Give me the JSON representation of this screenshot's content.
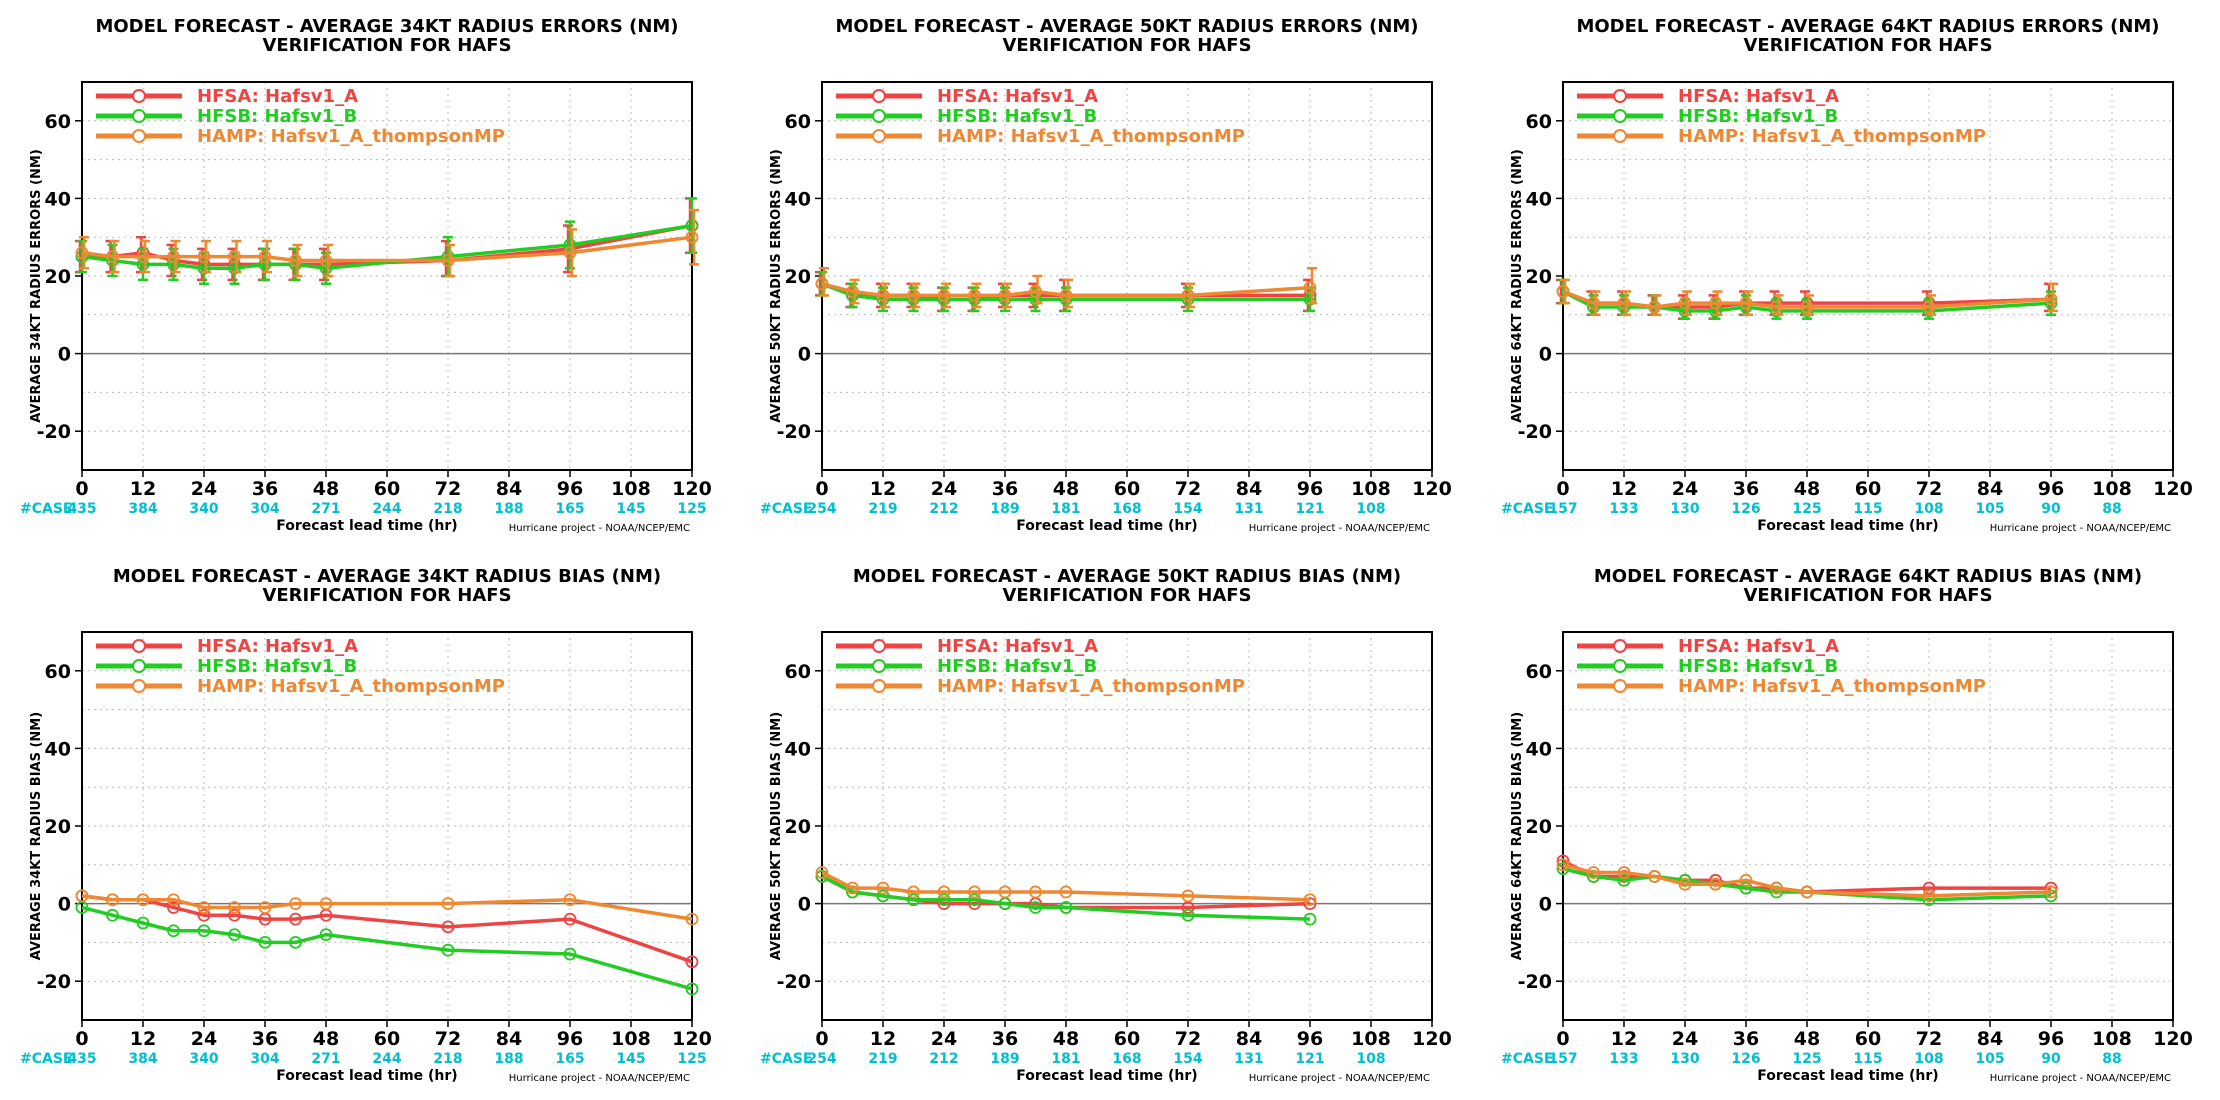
{
  "figure": {
    "colors": {
      "case_text": "#00c0d0",
      "grid": "#bbbbbb",
      "zero_line": "#777777"
    },
    "credit": "Hurricane project - NOAA/NCEP/EMC",
    "x_label": "Forecast lead time (hr)",
    "case_prefix": "#CASE"
  },
  "chart_data": [
    {
      "type": "line",
      "title": "MODEL FORECAST - AVERAGE 34KT RADIUS ERRORS (NM)",
      "subtitle": "VERIFICATION FOR HAFS",
      "ylabel": "AVERAGE 34KT RADIUS ERRORS (NM)",
      "xlabel": "Forecast lead time (hr)",
      "xlim": [
        0,
        120
      ],
      "ylim": [
        -30,
        70
      ],
      "xticks": [
        0,
        12,
        24,
        36,
        48,
        60,
        72,
        84,
        96,
        108,
        120
      ],
      "yticks": [
        -20,
        0,
        20,
        40,
        60
      ],
      "grid": true,
      "legend": "top-left",
      "x": [
        0,
        6,
        12,
        18,
        24,
        30,
        36,
        42,
        48,
        72,
        96,
        120
      ],
      "case_counts": {
        "x": [
          0,
          12,
          24,
          36,
          48,
          60,
          72,
          84,
          96,
          108,
          120
        ],
        "values": [
          435,
          384,
          340,
          304,
          271,
          244,
          218,
          188,
          165,
          145,
          125
        ]
      },
      "series": [
        {
          "name": "HFSA:  Hafsv1_A",
          "color": "#ee4444",
          "values": [
            25,
            25,
            26,
            24,
            23,
            23,
            23,
            23,
            23,
            24,
            27,
            33
          ],
          "err_low": [
            21,
            21,
            21,
            20,
            19,
            19,
            19,
            19,
            19,
            20,
            21,
            26
          ],
          "err_high": [
            29,
            29,
            30,
            28,
            27,
            27,
            27,
            27,
            27,
            29,
            33,
            40
          ]
        },
        {
          "name": "HFSB:  Hafsv1_B",
          "color": "#22cc22",
          "values": [
            25,
            24,
            23,
            23,
            22,
            22,
            23,
            23,
            22,
            25,
            28,
            33
          ],
          "err_low": [
            21,
            20,
            19,
            19,
            18,
            18,
            19,
            19,
            18,
            20,
            22,
            26
          ],
          "err_high": [
            29,
            28,
            27,
            27,
            26,
            26,
            27,
            27,
            26,
            30,
            34,
            40
          ]
        },
        {
          "name": "HAMP:  Hafsv1_A_thompsonMP",
          "color": "#ee8833",
          "values": [
            26,
            25,
            25,
            25,
            25,
            25,
            25,
            24,
            24,
            24,
            26,
            30
          ],
          "err_low": [
            22,
            21,
            21,
            21,
            21,
            21,
            21,
            20,
            20,
            20,
            20,
            23
          ],
          "err_high": [
            30,
            29,
            29,
            29,
            29,
            29,
            29,
            28,
            28,
            28,
            32,
            37
          ]
        }
      ]
    },
    {
      "type": "line",
      "title": "MODEL FORECAST - AVERAGE 50KT RADIUS ERRORS (NM)",
      "subtitle": "VERIFICATION FOR HAFS",
      "ylabel": "AVERAGE 50KT RADIUS ERRORS (NM)",
      "xlabel": "Forecast lead time (hr)",
      "xlim": [
        0,
        120
      ],
      "ylim": [
        -30,
        70
      ],
      "xticks": [
        0,
        12,
        24,
        36,
        48,
        60,
        72,
        84,
        96,
        108,
        120
      ],
      "yticks": [
        -20,
        0,
        20,
        40,
        60
      ],
      "grid": true,
      "legend": "top-left",
      "x": [
        0,
        6,
        12,
        18,
        24,
        30,
        36,
        42,
        48,
        72,
        96
      ],
      "case_counts": {
        "x": [
          0,
          12,
          24,
          36,
          48,
          60,
          72,
          84,
          96,
          108
        ],
        "values": [
          254,
          219,
          212,
          189,
          181,
          168,
          154,
          131,
          121,
          108
        ]
      },
      "series": [
        {
          "name": "HFSA:  Hafsv1_A",
          "color": "#ee4444",
          "values": [
            18,
            15,
            15,
            15,
            14,
            14,
            15,
            15,
            15,
            15,
            15
          ],
          "err_low": [
            15,
            12,
            12,
            12,
            11,
            11,
            12,
            12,
            11,
            12,
            11
          ],
          "err_high": [
            21,
            18,
            18,
            18,
            17,
            17,
            18,
            18,
            19,
            18,
            19
          ]
        },
        {
          "name": "HFSB:  Hafsv1_B",
          "color": "#22cc22",
          "values": [
            18,
            15,
            14,
            14,
            14,
            14,
            14,
            14,
            14,
            14,
            14
          ],
          "err_low": [
            15,
            12,
            11,
            11,
            11,
            11,
            11,
            11,
            11,
            11,
            11
          ],
          "err_high": [
            21,
            18,
            17,
            17,
            17,
            17,
            17,
            17,
            17,
            17,
            17
          ]
        },
        {
          "name": "HAMP:  Hafsv1_A_thompsonMP",
          "color": "#ee8833",
          "values": [
            18,
            16,
            15,
            15,
            15,
            15,
            15,
            16,
            15,
            15,
            17
          ],
          "err_low": [
            15,
            13,
            12,
            12,
            12,
            12,
            12,
            13,
            12,
            12,
            13
          ],
          "err_high": [
            22,
            19,
            18,
            18,
            18,
            18,
            18,
            20,
            19,
            18,
            22
          ]
        }
      ]
    },
    {
      "type": "line",
      "title": "MODEL FORECAST - AVERAGE 64KT RADIUS ERRORS (NM)",
      "subtitle": "VERIFICATION FOR HAFS",
      "ylabel": "AVERAGE 64KT RADIUS ERRORS (NM)",
      "xlabel": "Forecast lead time (hr)",
      "xlim": [
        0,
        120
      ],
      "ylim": [
        -30,
        70
      ],
      "xticks": [
        0,
        12,
        24,
        36,
        48,
        60,
        72,
        84,
        96,
        108,
        120
      ],
      "yticks": [
        -20,
        0,
        20,
        40,
        60
      ],
      "grid": true,
      "legend": "top-left",
      "x": [
        0,
        6,
        12,
        18,
        24,
        30,
        36,
        42,
        48,
        72,
        96
      ],
      "case_counts": {
        "x": [
          0,
          12,
          24,
          36,
          48,
          60,
          72,
          84,
          96,
          108
        ],
        "values": [
          157,
          133,
          130,
          126,
          125,
          115,
          108,
          105,
          90,
          88
        ]
      },
      "series": [
        {
          "name": "HFSA:  Hafsv1_A",
          "color": "#ee4444",
          "values": [
            16,
            13,
            13,
            12,
            12,
            12,
            13,
            13,
            13,
            13,
            14
          ],
          "err_low": [
            13,
            10,
            10,
            10,
            9,
            9,
            10,
            10,
            10,
            10,
            11
          ],
          "err_high": [
            19,
            16,
            16,
            15,
            15,
            15,
            16,
            16,
            16,
            16,
            18
          ]
        },
        {
          "name": "HFSB:  Hafsv1_B",
          "color": "#22cc22",
          "values": [
            16,
            12,
            12,
            12,
            11,
            11,
            12,
            11,
            11,
            11,
            13
          ],
          "err_low": [
            13,
            10,
            10,
            10,
            9,
            9,
            10,
            9,
            9,
            9,
            10
          ],
          "err_high": [
            19,
            15,
            15,
            15,
            14,
            14,
            15,
            14,
            14,
            14,
            16
          ]
        },
        {
          "name": "HAMP:  Hafsv1_A_thompsonMP",
          "color": "#ee8833",
          "values": [
            16,
            13,
            13,
            12,
            13,
            13,
            13,
            12,
            12,
            12,
            14
          ],
          "err_low": [
            13,
            10,
            10,
            10,
            10,
            10,
            10,
            10,
            10,
            10,
            11
          ],
          "err_high": [
            19,
            16,
            16,
            15,
            16,
            16,
            16,
            15,
            15,
            15,
            18
          ]
        }
      ]
    },
    {
      "type": "line",
      "title": "MODEL FORECAST - AVERAGE 34KT RADIUS BIAS (NM)",
      "subtitle": "VERIFICATION FOR HAFS",
      "ylabel": "AVERAGE 34KT RADIUS BIAS (NM)",
      "xlabel": "Forecast lead time (hr)",
      "xlim": [
        0,
        120
      ],
      "ylim": [
        -30,
        70
      ],
      "xticks": [
        0,
        12,
        24,
        36,
        48,
        60,
        72,
        84,
        96,
        108,
        120
      ],
      "yticks": [
        -20,
        0,
        20,
        40,
        60
      ],
      "grid": true,
      "legend": "top-left",
      "x": [
        0,
        6,
        12,
        18,
        24,
        30,
        36,
        42,
        48,
        72,
        96,
        120
      ],
      "case_counts": {
        "x": [
          0,
          12,
          24,
          36,
          48,
          60,
          72,
          84,
          96,
          108,
          120
        ],
        "values": [
          435,
          384,
          340,
          304,
          271,
          244,
          218,
          188,
          165,
          145,
          125
        ]
      },
      "series": [
        {
          "name": "HFSA:  Hafsv1_A",
          "color": "#ee4444",
          "values": [
            2,
            1,
            1,
            -1,
            -3,
            -3,
            -4,
            -4,
            -3,
            -6,
            -4,
            -15
          ]
        },
        {
          "name": "HFSB:  Hafsv1_B",
          "color": "#22cc22",
          "values": [
            -1,
            -3,
            -5,
            -7,
            -7,
            -8,
            -10,
            -10,
            -8,
            -12,
            -13,
            -22
          ]
        },
        {
          "name": "HAMP:  Hafsv1_A_thompsonMP",
          "color": "#ee8833",
          "values": [
            2,
            1,
            1,
            1,
            -1,
            -1,
            -1,
            0,
            0,
            0,
            1,
            -4
          ]
        }
      ]
    },
    {
      "type": "line",
      "title": "MODEL FORECAST - AVERAGE 50KT RADIUS BIAS (NM)",
      "subtitle": "VERIFICATION FOR HAFS",
      "ylabel": "AVERAGE 50KT RADIUS BIAS (NM)",
      "xlabel": "Forecast lead time (hr)",
      "xlim": [
        0,
        120
      ],
      "ylim": [
        -30,
        70
      ],
      "xticks": [
        0,
        12,
        24,
        36,
        48,
        60,
        72,
        84,
        96,
        108,
        120
      ],
      "yticks": [
        -20,
        0,
        20,
        40,
        60
      ],
      "grid": true,
      "legend": "top-left",
      "x": [
        0,
        6,
        12,
        18,
        24,
        30,
        36,
        42,
        48,
        72,
        96
      ],
      "case_counts": {
        "x": [
          0,
          12,
          24,
          36,
          48,
          60,
          72,
          84,
          96,
          108
        ],
        "values": [
          254,
          219,
          212,
          189,
          181,
          168,
          154,
          131,
          121,
          108
        ]
      },
      "series": [
        {
          "name": "HFSA:  Hafsv1_A",
          "color": "#ee4444",
          "values": [
            7,
            3,
            2,
            1,
            0,
            0,
            0,
            0,
            -1,
            -1,
            0
          ]
        },
        {
          "name": "HFSB:  Hafsv1_B",
          "color": "#22cc22",
          "values": [
            7,
            3,
            2,
            1,
            1,
            1,
            0,
            -1,
            -1,
            -3,
            -4
          ]
        },
        {
          "name": "HAMP:  Hafsv1_A_thompsonMP",
          "color": "#ee8833",
          "values": [
            8,
            4,
            4,
            3,
            3,
            3,
            3,
            3,
            3,
            2,
            1
          ]
        }
      ]
    },
    {
      "type": "line",
      "title": "MODEL FORECAST - AVERAGE 64KT RADIUS BIAS (NM)",
      "subtitle": "VERIFICATION FOR HAFS",
      "ylabel": "AVERAGE 64KT RADIUS BIAS (NM)",
      "xlabel": "Forecast lead time (hr)",
      "xlim": [
        0,
        120
      ],
      "ylim": [
        -30,
        70
      ],
      "xticks": [
        0,
        12,
        24,
        36,
        48,
        60,
        72,
        84,
        96,
        108,
        120
      ],
      "yticks": [
        -20,
        0,
        20,
        40,
        60
      ],
      "grid": true,
      "legend": "top-left",
      "x": [
        0,
        6,
        12,
        18,
        24,
        30,
        36,
        42,
        48,
        72,
        96
      ],
      "case_counts": {
        "x": [
          0,
          12,
          24,
          36,
          48,
          60,
          72,
          84,
          96,
          108
        ],
        "values": [
          157,
          133,
          130,
          126,
          125,
          115,
          108,
          105,
          90,
          88
        ]
      },
      "series": [
        {
          "name": "HFSA:  Hafsv1_A",
          "color": "#ee4444",
          "values": [
            11,
            7,
            7,
            7,
            6,
            6,
            4,
            4,
            3,
            4,
            4
          ]
        },
        {
          "name": "HFSB:  Hafsv1_B",
          "color": "#22cc22",
          "values": [
            9,
            7,
            6,
            7,
            6,
            5,
            4,
            3,
            3,
            1,
            2
          ]
        },
        {
          "name": "HAMP:  Hafsv1_A_thompsonMP",
          "color": "#ee8833",
          "values": [
            10,
            8,
            8,
            7,
            5,
            5,
            6,
            4,
            3,
            2,
            3
          ]
        }
      ]
    }
  ]
}
